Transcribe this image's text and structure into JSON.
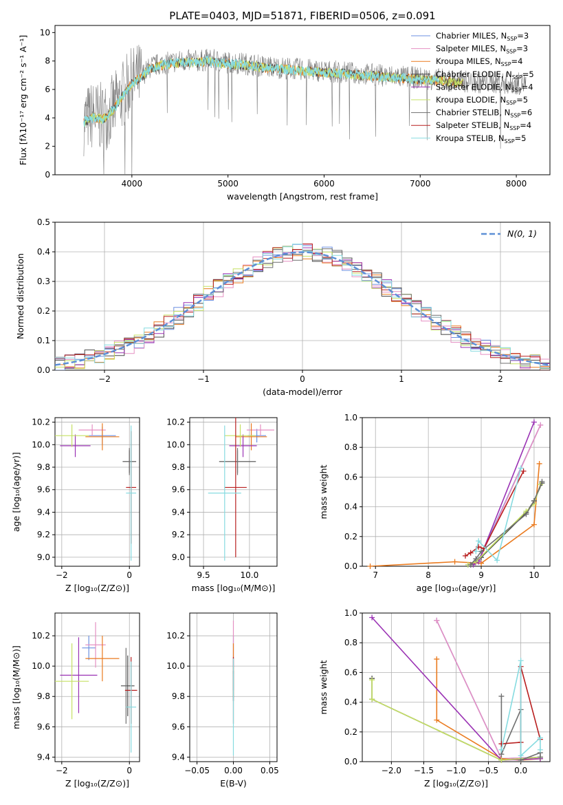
{
  "figure_title": "PLATE=0403, MJD=51871, FIBERID=0506, z=0.091",
  "colors": {
    "Chabrier MILES": "#6b8fe0",
    "Salpeter MILES": "#e58fc2",
    "Kroupa MILES": "#ea7a1e",
    "Chabrier ELODIE": "#4a4a4a",
    "Salpeter ELODIE": "#9a32b4",
    "Kroupa ELODIE": "#c5e063",
    "Chabrier STELIB": "#6f6f6f",
    "Salpeter STELIB": "#b81e1e",
    "Kroupa STELIB": "#86dbe0"
  },
  "chart_data": [
    {
      "id": "spectrum",
      "type": "line",
      "xlabel": "wavelength [Angstrom, rest frame]",
      "ylabel": "Flux [fλ10⁻¹⁷ erg cm⁻² s⁻¹ A⁻¹]",
      "xlim": [
        3200,
        8350
      ],
      "ylim": [
        0,
        10.5
      ],
      "xticks": [
        4000,
        5000,
        6000,
        7000,
        8000
      ],
      "yticks": [
        0,
        2,
        4,
        6,
        8,
        10
      ],
      "grid": false,
      "legend_position": "right",
      "legend": [
        {
          "name": "Chabrier MILES",
          "nssp": "3"
        },
        {
          "name": "Salpeter MILES",
          "nssp": "3"
        },
        {
          "name": "Kroupa MILES",
          "nssp": "4"
        },
        {
          "name": "Chabrier ELODIE",
          "nssp": "5"
        },
        {
          "name": "Salpeter ELODIE",
          "nssp": "4"
        },
        {
          "name": "Kroupa ELODIE",
          "nssp": "5"
        },
        {
          "name": "Chabrier STELIB",
          "nssp": "6"
        },
        {
          "name": "Salpeter STELIB",
          "nssp": "4"
        },
        {
          "name": "Kroupa STELIB",
          "nssp": "5"
        }
      ],
      "data_trace": {
        "x": [
          3500,
          3600,
          3700,
          3800,
          3900,
          4000,
          4100,
          4200,
          4300,
          4400,
          4500,
          4600,
          4700,
          4800,
          4900,
          5000,
          5200,
          5400,
          5600,
          5800,
          6000,
          6200,
          6400,
          6600,
          6800,
          7000,
          7200,
          7400,
          7600,
          7800,
          8000,
          8100
        ],
        "y": [
          3.8,
          4.2,
          4.0,
          4.6,
          5.6,
          6.5,
          7.0,
          7.6,
          7.8,
          7.9,
          8.0,
          8.0,
          8.0,
          8.1,
          8.0,
          7.9,
          7.8,
          7.6,
          7.5,
          7.4,
          7.3,
          7.2,
          7.1,
          7.0,
          6.9,
          6.8,
          6.7,
          6.6,
          6.5,
          6.5,
          6.4,
          6.4
        ]
      },
      "model_trace": {
        "x": [
          3500,
          3600,
          3700,
          3800,
          3900,
          4000,
          4100,
          4200,
          4300,
          4400,
          4500,
          4600,
          4700,
          4800,
          4900,
          5000,
          5200,
          5400,
          5600,
          5800,
          6000,
          6200,
          6400,
          6600,
          6800,
          7000,
          7200,
          7400
        ],
        "y": [
          3.7,
          4.0,
          3.9,
          4.5,
          5.5,
          6.4,
          6.9,
          7.5,
          7.7,
          7.8,
          7.9,
          7.9,
          7.9,
          8.0,
          7.9,
          7.8,
          7.7,
          7.5,
          7.4,
          7.3,
          7.2,
          7.1,
          7.0,
          6.9,
          6.8,
          6.7,
          6.6,
          6.5
        ]
      }
    },
    {
      "id": "residuals",
      "type": "line",
      "xlabel": "(data-model)/error",
      "ylabel": "Normed distribution",
      "xlim": [
        -2.5,
        2.5
      ],
      "ylim": [
        0,
        0.5
      ],
      "xticks": [
        -2,
        -1,
        0,
        1,
        2
      ],
      "yticks": [
        0.0,
        0.1,
        0.2,
        0.3,
        0.4,
        0.5
      ],
      "grid": true,
      "legend_position": "top-right",
      "legend_label": "N(0, 1)",
      "bin_width": 0.1
    },
    {
      "id": "age_vs_Z",
      "type": "scatter",
      "xlabel": "Z [log₁₀(Z/Z⊙)]",
      "ylabel": "age [log₁₀(age/yr)]",
      "xlim": [
        -2.2,
        0.3
      ],
      "ylim": [
        8.92,
        10.24
      ],
      "xticks": [
        -2,
        0
      ],
      "yticks": [
        9.0,
        9.2,
        9.4,
        9.6,
        9.8,
        10.0,
        10.2
      ],
      "grid": true,
      "points": [
        {
          "model": "Chabrier MILES",
          "x": -0.8,
          "y": 10.08,
          "xerr": 0.4,
          "yerr": 0.08
        },
        {
          "model": "Salpeter MILES",
          "x": -1.1,
          "y": 10.13,
          "xerr": 0.4,
          "yerr": 0.05
        },
        {
          "model": "Kroupa MILES",
          "x": -0.8,
          "y": 10.07,
          "xerr": 0.5,
          "yerr": 0.12
        },
        {
          "model": "Chabrier ELODIE",
          "x": 0.0,
          "y": 9.85,
          "xerr": 0.2,
          "yerr": 0.1
        },
        {
          "model": "Salpeter ELODIE",
          "x": -1.6,
          "y": 9.99,
          "xerr": 0.45,
          "yerr": 0.1
        },
        {
          "model": "Kroupa ELODIE",
          "x": -1.7,
          "y": 10.08,
          "xerr": 0.5,
          "yerr": 0.1
        },
        {
          "model": "Chabrier STELIB",
          "x": 0.0,
          "y": 9.85,
          "xerr": 0.02,
          "yerr": 0.12
        },
        {
          "model": "Salpeter STELIB",
          "x": 0.05,
          "y": 9.62,
          "xerr": 0.15,
          "yerr": 0.5
        },
        {
          "model": "Kroupa STELIB",
          "x": 0.05,
          "y": 9.57,
          "xerr": 0.15,
          "yerr": 0.6
        }
      ]
    },
    {
      "id": "age_vs_mass",
      "type": "scatter",
      "xlabel": "mass [log₁₀(M/M⊙)]",
      "ylabel": "",
      "xlim": [
        9.35,
        10.3
      ],
      "ylim": [
        8.92,
        10.24
      ],
      "xticks": [
        9.5,
        10.0
      ],
      "yticks": [
        9.0,
        9.2,
        9.4,
        9.6,
        9.8,
        10.0,
        10.2
      ],
      "grid": true,
      "points": [
        {
          "model": "Chabrier MILES",
          "x": 10.08,
          "y": 10.08,
          "xerr": 0.1,
          "yerr": 0.06
        },
        {
          "model": "Salpeter MILES",
          "x": 10.12,
          "y": 10.13,
          "xerr": 0.15,
          "yerr": 0.05
        },
        {
          "model": "Kroupa MILES",
          "x": 10.02,
          "y": 10.07,
          "xerr": 0.17,
          "yerr": 0.12
        },
        {
          "model": "Chabrier ELODIE",
          "x": 9.87,
          "y": 9.85,
          "xerr": 0.2,
          "yerr": 0.1
        },
        {
          "model": "Salpeter ELODIE",
          "x": 9.93,
          "y": 9.99,
          "xerr": 0.15,
          "yerr": 0.1
        },
        {
          "model": "Kroupa ELODIE",
          "x": 9.9,
          "y": 10.08,
          "xerr": 0.17,
          "yerr": 0.1
        },
        {
          "model": "Chabrier STELIB",
          "x": 9.87,
          "y": 9.85,
          "xerr": 0.02,
          "yerr": 0.12
        },
        {
          "model": "Salpeter STELIB",
          "x": 9.85,
          "y": 9.62,
          "xerr": 0.12,
          "yerr": 0.62
        },
        {
          "model": "Kroupa STELIB",
          "x": 9.73,
          "y": 9.57,
          "xerr": 0.18,
          "yerr": 0.6
        }
      ]
    },
    {
      "id": "mass_weight_vs_age",
      "type": "line",
      "xlabel": "age [log₁₀(age/yr)]",
      "ylabel": "mass weight",
      "xlim": [
        6.75,
        10.3
      ],
      "ylim": [
        0,
        1.0
      ],
      "xticks": [
        7,
        8,
        9,
        10
      ],
      "yticks": [
        0.0,
        0.2,
        0.4,
        0.6,
        0.8,
        1.0
      ],
      "grid": true,
      "series": [
        {
          "model": "Chabrier MILES",
          "x": [
            8.75,
            8.95,
            10.12
          ],
          "y": [
            0.01,
            0.04,
            0.95
          ]
        },
        {
          "model": "Salpeter MILES",
          "x": [
            8.8,
            8.95,
            10.12
          ],
          "y": [
            0.01,
            0.03,
            0.95
          ]
        },
        {
          "model": "Kroupa MILES",
          "x": [
            6.9,
            8.5,
            9.0,
            10.0,
            10.1
          ],
          "y": [
            0.0,
            0.03,
            0.02,
            0.28,
            0.69
          ]
        },
        {
          "model": "Chabrier ELODIE",
          "x": [
            8.8,
            9.0,
            9.85,
            10.0,
            10.15
          ],
          "y": [
            0.01,
            0.06,
            0.36,
            0.44,
            0.56
          ]
        },
        {
          "model": "Salpeter ELODIE",
          "x": [
            8.85,
            8.95,
            10.0
          ],
          "y": [
            0.01,
            0.03,
            0.97
          ]
        },
        {
          "model": "Kroupa ELODIE",
          "x": [
            8.75,
            8.9,
            9.85,
            10.0,
            10.12
          ],
          "y": [
            0.01,
            0.03,
            0.37,
            0.42,
            0.55
          ]
        },
        {
          "model": "Chabrier STELIB",
          "x": [
            8.8,
            8.9,
            9.0,
            9.85,
            10.0,
            10.15
          ],
          "y": [
            0.01,
            0.05,
            0.1,
            0.35,
            0.44,
            0.57
          ]
        },
        {
          "model": "Salpeter STELIB",
          "x": [
            8.7,
            8.8,
            8.95,
            9.05,
            9.8
          ],
          "y": [
            0.07,
            0.09,
            0.13,
            0.12,
            0.64
          ]
        },
        {
          "model": "Kroupa STELIB",
          "x": [
            8.9,
            8.95,
            9.3,
            9.75
          ],
          "y": [
            0.1,
            0.17,
            0.04,
            0.66
          ]
        }
      ]
    },
    {
      "id": "mass_vs_Z",
      "type": "scatter",
      "xlabel": "Z [log₁₀(Z/Z⊙)]",
      "ylabel": "mass [log₁₀(M/M⊙)]",
      "xlim": [
        -2.2,
        0.3
      ],
      "ylim": [
        9.37,
        10.35
      ],
      "xticks": [
        -2,
        0
      ],
      "yticks": [
        9.4,
        9.6,
        9.8,
        10.0,
        10.2
      ],
      "grid": true,
      "points": [
        {
          "model": "Chabrier MILES",
          "x": -1.2,
          "y": 10.12,
          "xerr": 0.2,
          "yerr": 0.08
        },
        {
          "model": "Salpeter MILES",
          "x": -1.0,
          "y": 10.14,
          "xerr": 0.3,
          "yerr": 0.15
        },
        {
          "model": "Kroupa MILES",
          "x": -0.8,
          "y": 10.05,
          "xerr": 0.5,
          "yerr": 0.15
        },
        {
          "model": "Chabrier ELODIE",
          "x": -0.05,
          "y": 9.87,
          "xerr": 0.2,
          "yerr": 0.2
        },
        {
          "model": "Salpeter ELODIE",
          "x": -1.5,
          "y": 9.94,
          "xerr": 0.55,
          "yerr": 0.25
        },
        {
          "model": "Kroupa ELODIE",
          "x": -1.7,
          "y": 9.9,
          "xerr": 0.5,
          "yerr": 0.25
        },
        {
          "model": "Chabrier STELIB",
          "x": -0.1,
          "y": 9.87,
          "xerr": 0.03,
          "yerr": 0.25
        },
        {
          "model": "Salpeter STELIB",
          "x": 0.05,
          "y": 9.84,
          "xerr": 0.18,
          "yerr": 0.22
        },
        {
          "model": "Kroupa STELIB",
          "x": 0.05,
          "y": 9.73,
          "xerr": 0.15,
          "yerr": 0.3
        }
      ]
    },
    {
      "id": "mass_vs_EBV",
      "type": "scatter",
      "xlabel": "E(B-V)",
      "ylabel": "",
      "xlim": [
        -0.06,
        0.06
      ],
      "ylim": [
        9.37,
        10.35
      ],
      "xticks": [
        -0.05,
        0.0,
        0.05
      ],
      "xtick_labels": [
        "−0.05",
        "0.00",
        "0.05"
      ],
      "yticks": [
        9.4,
        9.6,
        9.8,
        10.0,
        10.2
      ],
      "grid": true,
      "points": [
        {
          "model": "Chabrier MILES",
          "x": 0.0,
          "y": 10.12,
          "xerr": 0,
          "yerr": 0.08
        },
        {
          "model": "Salpeter MILES",
          "x": 0.0,
          "y": 10.14,
          "xerr": 0,
          "yerr": 0.16
        },
        {
          "model": "Kroupa MILES",
          "x": 0.0,
          "y": 10.05,
          "xerr": 0,
          "yerr": 0.1
        },
        {
          "model": "Chabrier ELODIE",
          "x": 0.0,
          "y": 9.87,
          "xerr": 0,
          "yerr": 0.1
        },
        {
          "model": "Salpeter ELODIE",
          "x": 0.0,
          "y": 9.94,
          "xerr": 0,
          "yerr": 0.1
        },
        {
          "model": "Kroupa ELODIE",
          "x": 0.0,
          "y": 9.9,
          "xerr": 0,
          "yerr": 0.1
        },
        {
          "model": "Chabrier STELIB",
          "x": 0.0,
          "y": 9.87,
          "xerr": 0,
          "yerr": 0.1
        },
        {
          "model": "Salpeter STELIB",
          "x": 0.0,
          "y": 9.84,
          "xerr": 0,
          "yerr": 0.22
        },
        {
          "model": "Kroupa STELIB",
          "x": 0.0,
          "y": 9.73,
          "xerr": 0,
          "yerr": 0.32
        }
      ]
    },
    {
      "id": "mass_weight_vs_Z",
      "type": "line",
      "xlabel": "Z [log₁₀(Z/Z⊙)]",
      "ylabel": "mass weight",
      "xlim": [
        -2.45,
        0.45
      ],
      "ylim": [
        0,
        1.0
      ],
      "xticks": [
        -2.0,
        -1.5,
        -1.0,
        -0.5,
        0.0
      ],
      "xtick_labels": [
        "−2.0",
        "−1.5",
        "−1.0",
        "−0.5",
        "0.0"
      ],
      "yticks": [
        0.0,
        0.2,
        0.4,
        0.6,
        0.8,
        1.0
      ],
      "grid": true,
      "series": [
        {
          "model": "Chabrier MILES",
          "x": [
            -1.3,
            -0.3,
            0.3
          ],
          "y": [
            0.95,
            0.02,
            0.03
          ]
        },
        {
          "model": "Salpeter MILES",
          "x": [
            -1.3,
            -0.3,
            0.3
          ],
          "y": [
            0.95,
            0.02,
            0.03
          ]
        },
        {
          "model": "Kroupa MILES",
          "x": [
            -1.3,
            -1.3,
            -0.3,
            0.0,
            0.3
          ],
          "y": [
            0.69,
            0.28,
            0.02,
            0.01,
            0.02
          ]
        },
        {
          "model": "Chabrier ELODIE",
          "x": [
            -2.3,
            -2.3,
            -0.3,
            0.0,
            0.3
          ],
          "y": [
            0.56,
            0.42,
            0.01,
            0.02,
            0.03
          ]
        },
        {
          "model": "Salpeter ELODIE",
          "x": [
            -2.3,
            -0.3,
            0.3
          ],
          "y": [
            0.97,
            0.01,
            0.02
          ]
        },
        {
          "model": "Kroupa ELODIE",
          "x": [
            -2.3,
            -2.3,
            -0.3,
            0.0,
            0.3
          ],
          "y": [
            0.55,
            0.42,
            0.01,
            0.02,
            0.03
          ]
        },
        {
          "model": "Chabrier STELIB",
          "x": [
            -0.3,
            -0.3,
            0.0,
            0.0,
            0.3,
            0.3
          ],
          "y": [
            0.44,
            0.05,
            0.35,
            0.01,
            0.06,
            0.03
          ]
        },
        {
          "model": "Salpeter STELIB",
          "x": [
            -0.3,
            0.0,
            0.0,
            0.3
          ],
          "y": [
            0.12,
            0.13,
            0.64,
            0.15
          ]
        },
        {
          "model": "Kroupa STELIB",
          "x": [
            -0.3,
            0.0,
            0.0,
            0.3,
            0.3
          ],
          "y": [
            0.08,
            0.68,
            0.04,
            0.16,
            0.08
          ]
        }
      ]
    }
  ]
}
